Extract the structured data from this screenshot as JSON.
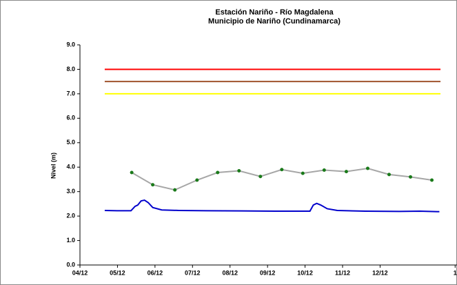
{
  "chart_data": {
    "type": "line",
    "title": [
      "Estación Nariño  - Río Magdalena",
      "Municipio de Nariño (Cundinamarca)"
    ],
    "y_label": "Nivel (m)",
    "xlim": [
      0,
      10.05
    ],
    "xticks": [
      {
        "value": 0,
        "label": "04/12"
      },
      {
        "value": 1,
        "label": "05/12"
      },
      {
        "value": 2,
        "label": "06/12"
      },
      {
        "value": 3,
        "label": "07/12"
      },
      {
        "value": 4,
        "label": "08/12"
      },
      {
        "value": 5,
        "label": "09/12"
      },
      {
        "value": 6,
        "label": "10/12"
      },
      {
        "value": 7,
        "label": "11/12"
      },
      {
        "value": 8,
        "label": "12/12"
      },
      {
        "value": 10,
        "label": "1"
      }
    ],
    "ylim": [
      0,
      9
    ],
    "yticks": [
      {
        "value": 0,
        "label": "0.0"
      },
      {
        "value": 1,
        "label": "1.0"
      },
      {
        "value": 2,
        "label": "2.0"
      },
      {
        "value": 3,
        "label": "3.0"
      },
      {
        "value": 4,
        "label": "4.0"
      },
      {
        "value": 5,
        "label": "5.0"
      },
      {
        "value": 6,
        "label": "6.0"
      },
      {
        "value": 7,
        "label": "7.0"
      },
      {
        "value": 8,
        "label": "8.0"
      },
      {
        "value": 9,
        "label": "9.0"
      }
    ],
    "series": [
      {
        "color": "#ff0000",
        "x": [
          0.66,
          9.61
        ],
        "values": [
          8.0,
          8.0
        ]
      },
      {
        "color": "#a0522d",
        "x": [
          0.66,
          9.61
        ],
        "values": [
          7.5,
          7.5
        ]
      },
      {
        "color": "#ffff00",
        "x": [
          0.66,
          9.61
        ],
        "values": [
          7.0,
          7.0
        ]
      },
      {
        "color": "#a6a6a6",
        "marker_color": "#1a7a1a",
        "markers": true,
        "x": [
          1.38,
          1.94,
          2.53,
          3.12,
          3.67,
          4.24,
          4.81,
          5.38,
          5.94,
          6.51,
          7.1,
          7.67,
          8.24,
          8.81,
          9.38
        ],
        "values": [
          3.78,
          3.28,
          3.07,
          3.47,
          3.78,
          3.85,
          3.62,
          3.9,
          3.75,
          3.88,
          3.82,
          3.95,
          3.7,
          3.6,
          3.47
        ]
      },
      {
        "color": "#0000cc",
        "x": [
          0.66,
          0.99,
          1.36,
          1.47,
          1.54,
          1.63,
          1.72,
          1.82,
          1.94,
          2.18,
          2.64,
          3.38,
          4.29,
          5.21,
          6.13,
          6.22,
          6.31,
          6.42,
          6.59,
          6.86,
          7.6,
          8.51,
          9.06,
          9.58
        ],
        "values": [
          2.23,
          2.22,
          2.22,
          2.4,
          2.45,
          2.62,
          2.65,
          2.55,
          2.35,
          2.25,
          2.23,
          2.22,
          2.21,
          2.2,
          2.2,
          2.45,
          2.52,
          2.45,
          2.3,
          2.23,
          2.2,
          2.19,
          2.2,
          2.18
        ]
      }
    ]
  }
}
